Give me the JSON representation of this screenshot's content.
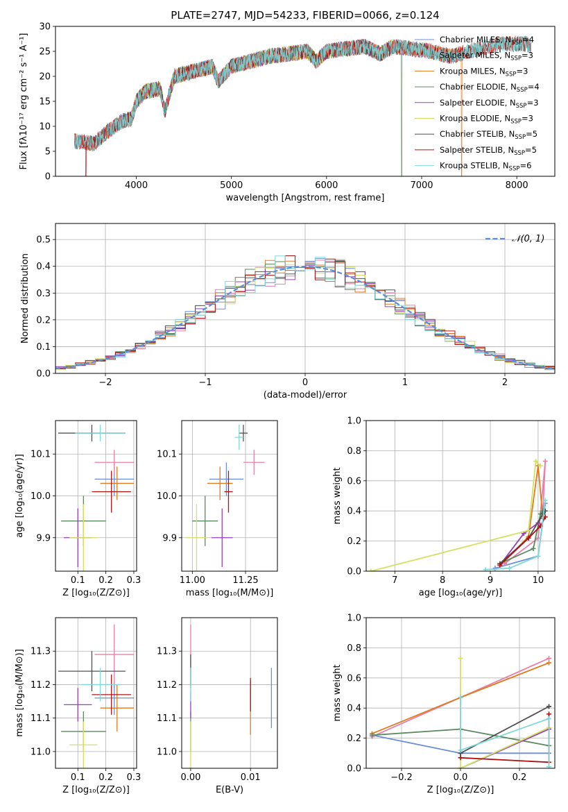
{
  "colors": {
    "chabrier_miles": "#6a8fd8",
    "salpeter_miles": "#e87fa8",
    "kroupa_miles": "#e07a1e",
    "chabrier_elodie": "#5a8a5e",
    "salpeter_elodie": "#9a3fc0",
    "kroupa_elodie": "#d4e060",
    "chabrier_stelib": "#505050",
    "salpeter_stelib": "#b01010",
    "kroupa_stelib": "#7fd8d8",
    "normal": "#5b8ed8",
    "grid": "#b0b0b0"
  },
  "chart_data": [
    {
      "id": "spectrum",
      "type": "line",
      "title": "PLATE=2747, MJD=54233, FIBERID=0066, z=0.124",
      "xlabel": "wavelength [Angstrom, rest frame]",
      "ylabel": "Flux [fλ10⁻¹⁷ erg cm⁻² s⁻¹ A⁻¹]",
      "xlim": [
        3150,
        8400
      ],
      "ylim": [
        0,
        30
      ],
      "xticks": [
        4000,
        5000,
        6000,
        7000,
        8000
      ],
      "yticks": [
        0,
        5,
        10,
        15,
        20,
        25,
        30
      ],
      "grid": false,
      "legend_placement": "top-right",
      "continuum": [
        [
          3400,
          7
        ],
        [
          3550,
          6.5
        ],
        [
          3700,
          9
        ],
        [
          3850,
          11
        ],
        [
          3950,
          11.5
        ],
        [
          4000,
          15
        ],
        [
          4100,
          17
        ],
        [
          4250,
          17.5
        ],
        [
          4300,
          13
        ],
        [
          4400,
          20
        ],
        [
          4600,
          21
        ],
        [
          4800,
          22
        ],
        [
          4860,
          19
        ],
        [
          5000,
          22
        ],
        [
          5200,
          23
        ],
        [
          5400,
          24
        ],
        [
          5600,
          24.5
        ],
        [
          5800,
          25
        ],
        [
          5890,
          23
        ],
        [
          6000,
          25
        ],
        [
          6200,
          25.5
        ],
        [
          6400,
          26
        ],
        [
          6563,
          24.5
        ],
        [
          6700,
          26
        ],
        [
          6900,
          25.5
        ],
        [
          7100,
          25
        ],
        [
          7300,
          24
        ],
        [
          7500,
          25
        ],
        [
          7700,
          26
        ],
        [
          7900,
          26.5
        ],
        [
          8100,
          26.5
        ],
        [
          8150,
          26
        ]
      ],
      "series": [
        {
          "key": "chabrier_miles",
          "name": "Chabrier MILES, N",
          "sub": "SSP",
          "suffix": "=4",
          "xmin": 3350,
          "xmax": 7430,
          "dip_x": null
        },
        {
          "key": "salpeter_miles",
          "name": "Salpeter MILES, N",
          "sub": "SSP",
          "suffix": "=3",
          "xmin": 3350,
          "xmax": 7430,
          "dip_x": null
        },
        {
          "key": "kroupa_miles",
          "name": "Kroupa MILES, N",
          "sub": "SSP",
          "suffix": "=3",
          "xmin": 3350,
          "xmax": 7430,
          "dip_x": 7420
        },
        {
          "key": "chabrier_elodie",
          "name": "Chabrier ELODIE, N",
          "sub": "SSP",
          "suffix": "=4",
          "xmin": 3920,
          "xmax": 6800,
          "dip_x": 6790
        },
        {
          "key": "salpeter_elodie",
          "name": "Salpeter ELODIE, N",
          "sub": "SSP",
          "suffix": "=3",
          "xmin": 3920,
          "xmax": 6800,
          "dip_x": null
        },
        {
          "key": "kroupa_elodie",
          "name": "Kroupa ELODIE, N",
          "sub": "SSP",
          "suffix": "=3",
          "xmin": 3920,
          "xmax": 6800,
          "dip_x": 3910
        },
        {
          "key": "chabrier_stelib",
          "name": "Chabrier STELIB, N",
          "sub": "SSP",
          "suffix": "=5",
          "xmin": 3350,
          "xmax": 8150,
          "dip_x": null
        },
        {
          "key": "salpeter_stelib",
          "name": "Salpeter STELIB, N",
          "sub": "SSP",
          "suffix": "=5",
          "xmin": 3350,
          "xmax": 8150,
          "dip_x": 3470
        },
        {
          "key": "kroupa_stelib",
          "name": "Kroupa STELIB, N",
          "sub": "SSP",
          "suffix": "=6",
          "xmin": 3350,
          "xmax": 8150,
          "dip_x": null
        }
      ]
    },
    {
      "id": "residuals",
      "type": "step",
      "xlabel": "(data-model)/error",
      "ylabel": "Normed distribution",
      "xlim": [
        -2.5,
        2.5
      ],
      "ylim": [
        0,
        0.56
      ],
      "xticks": [
        -2,
        -1,
        0,
        1,
        2
      ],
      "xticklabels": [
        "−2",
        "−1",
        "0",
        "1",
        "2"
      ],
      "yticks": [
        0,
        0.1,
        0.2,
        0.3,
        0.4,
        0.5
      ],
      "yticklabels": [
        "0.0",
        "0.1",
        "0.2",
        "0.3",
        "0.4",
        "0.5"
      ],
      "grid": true,
      "legend_placement": "top-right",
      "legend": [
        "𝒩(0, 1)"
      ],
      "bin_width": 0.1,
      "bin_start": -2.5
    },
    {
      "id": "age_vs_Z",
      "type": "errorbar",
      "xlabel": "Z [log₁₀(Z/Z⊙)]",
      "ylabel": "age  [log₁₀(age/yr)]",
      "xlim": [
        0.02,
        0.31
      ],
      "ylim": [
        9.82,
        10.18
      ],
      "xticks": [
        0.1,
        0.2,
        0.3
      ],
      "xticklabels": [
        "0.1",
        "0.2",
        "0.3"
      ],
      "yticks": [
        9.9,
        10.0,
        10.1
      ],
      "yticklabels": [
        "9.9",
        "10.0",
        "10.1"
      ],
      "grid": true,
      "points": [
        {
          "key": "chabrier_miles",
          "x": 0.23,
          "y": 10.04,
          "ex": 0.07,
          "ey": 0.04
        },
        {
          "key": "salpeter_miles",
          "x": 0.23,
          "y": 10.08,
          "ex": 0.07,
          "ey": 0.03
        },
        {
          "key": "kroupa_miles",
          "x": 0.24,
          "y": 10.03,
          "ex": 0.06,
          "ey": 0.04
        },
        {
          "key": "chabrier_elodie",
          "x": 0.12,
          "y": 9.94,
          "ex": 0.08,
          "ey": 0.06
        },
        {
          "key": "salpeter_elodie",
          "x": 0.1,
          "y": 9.9,
          "ex": 0.05,
          "ey": 0.07
        },
        {
          "key": "kroupa_elodie",
          "x": 0.12,
          "y": 9.9,
          "ex": 0.05,
          "ey": 0.08
        },
        {
          "key": "chabrier_stelib",
          "x": 0.15,
          "y": 10.15,
          "ex": 0.12,
          "ey": 0.02
        },
        {
          "key": "salpeter_stelib",
          "x": 0.22,
          "y": 10.01,
          "ex": 0.07,
          "ey": 0.05
        },
        {
          "key": "kroupa_stelib",
          "x": 0.18,
          "y": 10.15,
          "ex": 0.09,
          "ey": 0.02
        }
      ]
    },
    {
      "id": "age_vs_mass",
      "type": "errorbar",
      "xlabel": "mass [log₁₀(M/M⊙)]",
      "ylabel": "",
      "xlim": [
        10.95,
        11.4
      ],
      "ylim": [
        9.82,
        10.18
      ],
      "xticks": [
        11.0,
        11.25
      ],
      "xticklabels": [
        "11.00",
        "11.25"
      ],
      "yticks": [
        9.9,
        10.0,
        10.1
      ],
      "yticklabels": [
        "9.9",
        "10.0",
        "10.1"
      ],
      "grid": true,
      "points": [
        {
          "key": "chabrier_miles",
          "x": 11.16,
          "y": 10.04,
          "ex": 0.08,
          "ey": 0.04
        },
        {
          "key": "salpeter_miles",
          "x": 11.29,
          "y": 10.08,
          "ex": 0.05,
          "ey": 0.03
        },
        {
          "key": "kroupa_miles",
          "x": 11.13,
          "y": 10.03,
          "ex": 0.06,
          "ey": 0.04
        },
        {
          "key": "chabrier_elodie",
          "x": 11.06,
          "y": 9.94,
          "ex": 0.06,
          "ey": 0.06
        },
        {
          "key": "salpeter_elodie",
          "x": 11.14,
          "y": 9.9,
          "ex": 0.05,
          "ey": 0.07
        },
        {
          "key": "kroupa_elodie",
          "x": 11.02,
          "y": 9.9,
          "ex": 0.05,
          "ey": 0.08
        },
        {
          "key": "chabrier_stelib",
          "x": 11.24,
          "y": 10.15,
          "ex": 0.02,
          "ey": 0.02
        },
        {
          "key": "salpeter_stelib",
          "x": 11.17,
          "y": 10.01,
          "ex": 0.02,
          "ey": 0.05
        },
        {
          "key": "kroupa_stelib",
          "x": 11.22,
          "y": 10.14,
          "ex": 0.02,
          "ey": 0.03
        }
      ]
    },
    {
      "id": "weight_vs_age",
      "type": "line",
      "xlabel": "age  [log₁₀(age/yr)]",
      "ylabel": "mass weight",
      "xlim": [
        6.4,
        10.35
      ],
      "ylim": [
        0,
        1.0
      ],
      "xticks": [
        7,
        8,
        9,
        10
      ],
      "xticklabels": [
        "7",
        "8",
        "9",
        "10"
      ],
      "yticks": [
        0,
        0.2,
        0.4,
        0.6,
        0.8,
        1.0
      ],
      "yticklabels": [
        "0.0",
        "0.2",
        "0.4",
        "0.6",
        "0.8",
        "1.0"
      ],
      "grid": true,
      "series": [
        {
          "key": "chabrier_miles",
          "x": [
            9.1,
            10.0,
            10.15,
            10.1
          ],
          "y": [
            0.02,
            0.1,
            0.45,
            0.42
          ]
        },
        {
          "key": "salpeter_miles",
          "x": [
            9.3,
            10.0,
            10.15,
            10.1
          ],
          "y": [
            0.05,
            0.22,
            0.73,
            0.4
          ]
        },
        {
          "key": "kroupa_miles",
          "x": [
            9.3,
            9.8,
            10.0,
            10.1
          ],
          "y": [
            0.07,
            0.23,
            0.7,
            0.35
          ]
        },
        {
          "key": "chabrier_elodie",
          "x": [
            9.2,
            9.9,
            10.05,
            10.1
          ],
          "y": [
            0.05,
            0.15,
            0.38,
            0.4
          ]
        },
        {
          "key": "salpeter_elodie",
          "x": [
            9.2,
            9.7,
            10.0,
            10.1
          ],
          "y": [
            0.04,
            0.25,
            0.32,
            0.38
          ]
        },
        {
          "key": "kroupa_elodie",
          "x": [
            6.5,
            9.8,
            9.95,
            10.05
          ],
          "y": [
            0.0,
            0.27,
            0.73,
            0.7
          ]
        },
        {
          "key": "chabrier_stelib",
          "x": [
            9.2,
            9.8,
            10.1,
            10.15
          ],
          "y": [
            0.05,
            0.22,
            0.38,
            0.4
          ]
        },
        {
          "key": "salpeter_stelib",
          "x": [
            9.2,
            9.8,
            10.05,
            10.15
          ],
          "y": [
            0.04,
            0.22,
            0.3,
            0.36
          ]
        },
        {
          "key": "kroupa_stelib",
          "x": [
            8.9,
            9.4,
            10.0,
            10.15
          ],
          "y": [
            0.01,
            0.02,
            0.1,
            0.47
          ]
        }
      ]
    },
    {
      "id": "mass_vs_Z",
      "type": "errorbar",
      "xlabel": "Z [log₁₀(Z/Z⊙)]",
      "ylabel": "mass [log₁₀(M/M⊙)]",
      "xlim": [
        0.02,
        0.31
      ],
      "ylim": [
        10.95,
        11.4
      ],
      "xticks": [
        0.1,
        0.2,
        0.3
      ],
      "xticklabels": [
        "0.1",
        "0.2",
        "0.3"
      ],
      "yticks": [
        11.0,
        11.1,
        11.2,
        11.3
      ],
      "yticklabels": [
        "11.0",
        "11.1",
        "11.2",
        "11.3"
      ],
      "grid": true,
      "points": [
        {
          "key": "chabrier_miles",
          "x": 0.23,
          "y": 11.16,
          "ex": 0.07,
          "ey": 0.05
        },
        {
          "key": "salpeter_miles",
          "x": 0.23,
          "y": 11.29,
          "ex": 0.07,
          "ey": 0.09
        },
        {
          "key": "kroupa_miles",
          "x": 0.24,
          "y": 11.13,
          "ex": 0.06,
          "ey": 0.07
        },
        {
          "key": "chabrier_elodie",
          "x": 0.12,
          "y": 11.06,
          "ex": 0.08,
          "ey": 0.06
        },
        {
          "key": "salpeter_elodie",
          "x": 0.1,
          "y": 11.14,
          "ex": 0.05,
          "ey": 0.05
        },
        {
          "key": "kroupa_elodie",
          "x": 0.12,
          "y": 11.02,
          "ex": 0.05,
          "ey": 0.07
        },
        {
          "key": "chabrier_stelib",
          "x": 0.15,
          "y": 11.24,
          "ex": 0.12,
          "ey": 0.06
        },
        {
          "key": "salpeter_stelib",
          "x": 0.22,
          "y": 11.17,
          "ex": 0.07,
          "ey": 0.06
        },
        {
          "key": "kroupa_stelib",
          "x": 0.18,
          "y": 11.2,
          "ex": 0.07,
          "ey": 0.05
        }
      ]
    },
    {
      "id": "mass_vs_ebv",
      "type": "errorbar",
      "xlabel": "E(B-V)",
      "ylabel": "",
      "xlim": [
        -0.0015,
        0.0145
      ],
      "ylim": [
        10.95,
        11.4
      ],
      "xticks": [
        0.0,
        0.01
      ],
      "xticklabels": [
        "0.00",
        "0.01"
      ],
      "yticks": [
        11.0,
        11.1,
        11.2,
        11.3
      ],
      "yticklabels": [
        "11.0",
        "11.1",
        "11.2",
        "11.3"
      ],
      "grid": true,
      "points": [
        {
          "key": "chabrier_miles",
          "x": 0.0135,
          "y": 11.16,
          "ex": 0,
          "ey": 0.09
        },
        {
          "key": "salpeter_miles",
          "x": 0.0,
          "y": 11.29,
          "ex": 0,
          "ey": 0.09
        },
        {
          "key": "kroupa_miles",
          "x": 0.01,
          "y": 11.13,
          "ex": 0,
          "ey": 0.08
        },
        {
          "key": "chabrier_elodie",
          "x": 0.0,
          "y": 11.06,
          "ex": 0,
          "ey": 0.06
        },
        {
          "key": "salpeter_elodie",
          "x": 0.0,
          "y": 11.14,
          "ex": 0,
          "ey": 0.04
        },
        {
          "key": "kroupa_elodie",
          "x": 0.0,
          "y": 11.02,
          "ex": 0,
          "ey": 0.07
        },
        {
          "key": "chabrier_stelib",
          "x": 0.0,
          "y": 11.24,
          "ex": 0,
          "ey": 0.05
        },
        {
          "key": "salpeter_stelib",
          "x": 0.01,
          "y": 11.17,
          "ex": 0,
          "ey": 0.05
        },
        {
          "key": "kroupa_stelib",
          "x": 0.0,
          "y": 11.2,
          "ex": 0,
          "ey": 0.05
        }
      ]
    },
    {
      "id": "weight_vs_Z",
      "type": "line",
      "xlabel": "Z [log₁₀(Z/Z⊙)]",
      "ylabel": "mass weight",
      "xlim": [
        -0.32,
        0.32
      ],
      "ylim": [
        0,
        1.0
      ],
      "xticks": [
        -0.2,
        0.0,
        0.2
      ],
      "xticklabels": [
        "−0.2",
        "0.0",
        "0.2"
      ],
      "yticks": [
        0,
        0.2,
        0.4,
        0.6,
        0.8,
        1.0
      ],
      "yticklabels": [
        "0.0",
        "0.2",
        "0.4",
        "0.6",
        "0.8",
        "1.0"
      ],
      "grid": true,
      "series": [
        {
          "key": "chabrier_miles",
          "x": [
            -0.3,
            0.0,
            0.3
          ],
          "y": [
            0.22,
            0.1,
            0.1
          ]
        },
        {
          "key": "salpeter_miles",
          "x": [
            -0.3,
            0.0,
            0.3
          ],
          "y": [
            0.21,
            0.47,
            0.73
          ]
        },
        {
          "key": "kroupa_miles",
          "x": [
            -0.3,
            0.0,
            0.3
          ],
          "y": [
            0.23,
            0.47,
            0.7
          ]
        },
        {
          "key": "chabrier_elodie",
          "x": [
            -0.3,
            0.0,
            0.3
          ],
          "y": [
            0.22,
            0.26,
            0.15
          ]
        },
        {
          "key": "salpeter_elodie",
          "x": [
            0.0,
            0.3
          ],
          "y": [
            0.0,
            0.26
          ]
        },
        {
          "key": "kroupa_elodie",
          "x": [
            0.0,
            0.0,
            0.3
          ],
          "y": [
            0.73,
            0.0,
            0.27
          ]
        },
        {
          "key": "chabrier_stelib",
          "x": [
            0.0,
            0.0,
            0.3,
            0.3
          ],
          "y": [
            0.1,
            0.1,
            0.41,
            0.41
          ]
        },
        {
          "key": "salpeter_stelib",
          "x": [
            0.0,
            0.3,
            0.3
          ],
          "y": [
            0.07,
            0.04,
            0.36
          ]
        },
        {
          "key": "kroupa_stelib",
          "x": [
            0.0,
            0.0,
            0.3,
            0.3
          ],
          "y": [
            0.47,
            0.12,
            0.33,
            0.01
          ]
        }
      ]
    }
  ]
}
